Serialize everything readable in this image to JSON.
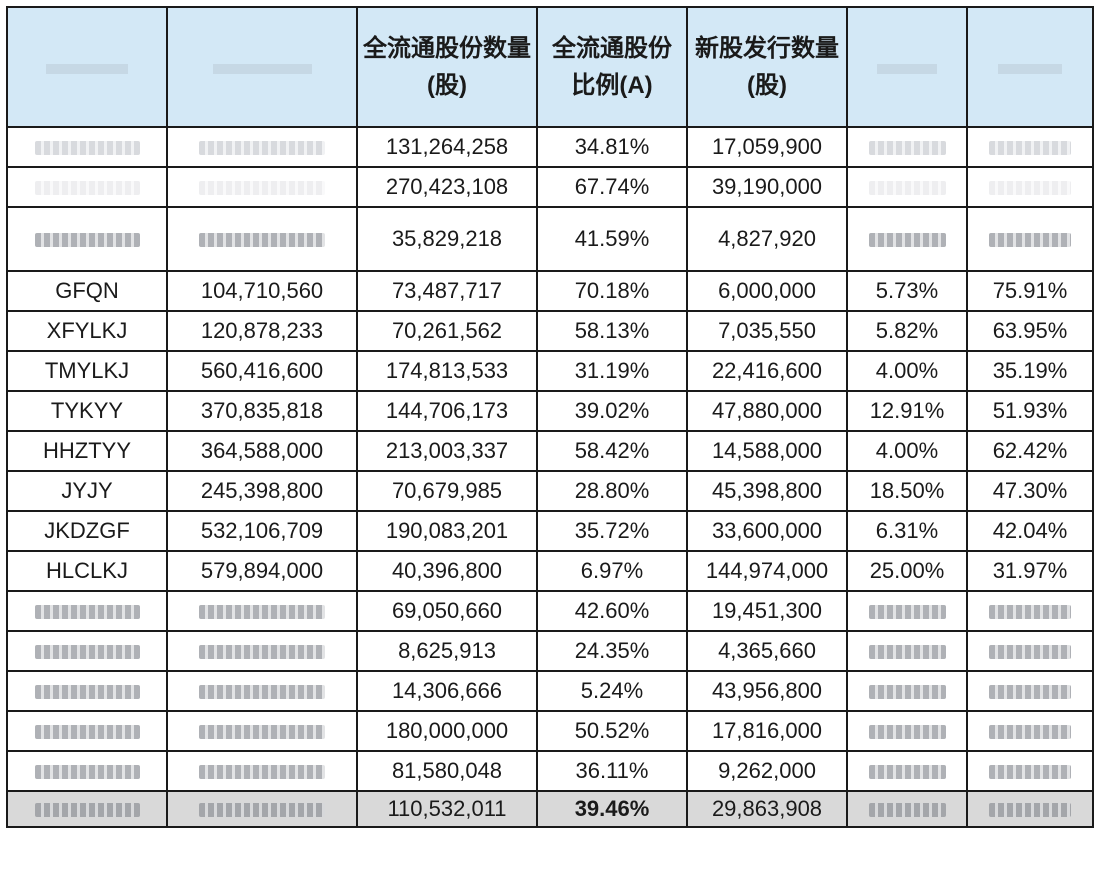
{
  "headers": [
    "",
    "",
    "全流通股份数量(股)",
    "全流通股份比例(A)",
    "新股发行数量(股)",
    "",
    ""
  ],
  "rows": [
    [
      "",
      "",
      "131,264,258",
      "34.81%",
      "17,059,900",
      "",
      ""
    ],
    [
      "",
      "",
      "270,423,108",
      "67.74%",
      "39,190,000",
      "",
      ""
    ],
    [
      "",
      "",
      "35,829,218",
      "41.59%",
      "4,827,920",
      "",
      ""
    ],
    [
      "GFQN",
      "104,710,560",
      "73,487,717",
      "70.18%",
      "6,000,000",
      "5.73%",
      "75.91%"
    ],
    [
      "XFYLKJ",
      "120,878,233",
      "70,261,562",
      "58.13%",
      "7,035,550",
      "5.82%",
      "63.95%"
    ],
    [
      "TMYLKJ",
      "560,416,600",
      "174,813,533",
      "31.19%",
      "22,416,600",
      "4.00%",
      "35.19%"
    ],
    [
      "TYKYY",
      "370,835,818",
      "144,706,173",
      "39.02%",
      "47,880,000",
      "12.91%",
      "51.93%"
    ],
    [
      "HHZTYY",
      "364,588,000",
      "213,003,337",
      "58.42%",
      "14,588,000",
      "4.00%",
      "62.42%"
    ],
    [
      "JYJY",
      "245,398,800",
      "70,679,985",
      "28.80%",
      "45,398,800",
      "18.50%",
      "47.30%"
    ],
    [
      "JKDZGF",
      "532,106,709",
      "190,083,201",
      "35.72%",
      "33,600,000",
      "6.31%",
      "42.04%"
    ],
    [
      "HLCLKJ",
      "579,894,000",
      "40,396,800",
      "6.97%",
      "144,974,000",
      "25.00%",
      "31.97%"
    ],
    [
      "",
      "",
      "69,050,660",
      "42.60%",
      "19,451,300",
      "",
      ""
    ],
    [
      "",
      "",
      "8,625,913",
      "24.35%",
      "4,365,660",
      "",
      ""
    ],
    [
      "",
      "",
      "14,306,666",
      "5.24%",
      "43,956,800",
      "",
      ""
    ],
    [
      "",
      "",
      "180,000,000",
      "50.52%",
      "17,816,000",
      "",
      ""
    ],
    [
      "",
      "",
      "81,580,048",
      "36.11%",
      "9,262,000",
      "",
      ""
    ],
    [
      "",
      "",
      "110,532,011",
      "39.46%",
      "29,863,908",
      "",
      ""
    ]
  ]
}
